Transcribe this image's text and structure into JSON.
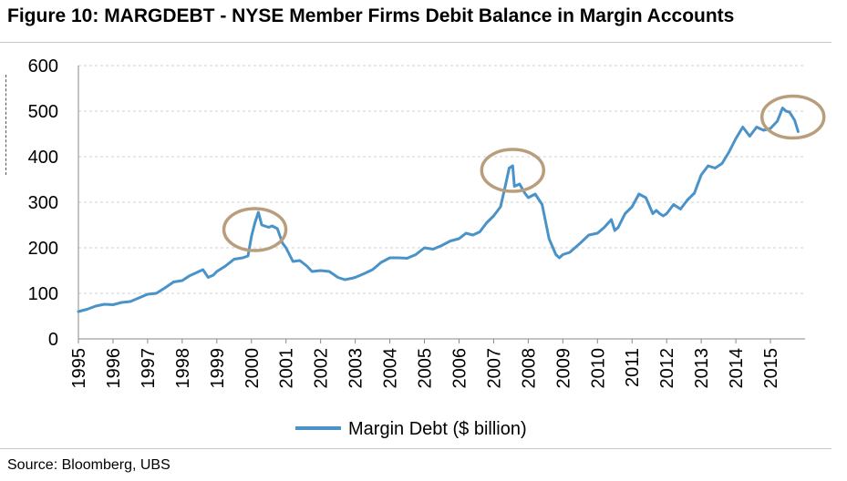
{
  "header": {
    "title": "Figure 10: MARGDEBT - NYSE Member Firms Debit Balance in Margin Accounts"
  },
  "footer": {
    "source": "Source:  Bloomberg, UBS"
  },
  "colors": {
    "line": "#4a93c9",
    "highlight": "#b99e7e",
    "grid": "#d0d0d0"
  },
  "chart_data": {
    "type": "line",
    "title": "Figure 10: MARGDEBT - NYSE Member Firms Debit Balance in Margin Accounts",
    "xlabel": "",
    "ylabel": "",
    "ylim": [
      0,
      600
    ],
    "yticks": [
      "0",
      "100",
      "200",
      "300",
      "400",
      "500",
      "600"
    ],
    "xlim": [
      1995,
      2016
    ],
    "xticks": [
      "1995",
      "1996",
      "1997",
      "1998",
      "1999",
      "2000",
      "2001",
      "2002",
      "2003",
      "2004",
      "2005",
      "2006",
      "2007",
      "2008",
      "2009",
      "2010",
      "2011",
      "2012",
      "2013",
      "2014",
      "2015"
    ],
    "grid": "horizontal dashed",
    "legend_position": "bottom",
    "highlights": [
      {
        "x": 2000.1,
        "y": 240
      },
      {
        "x": 2007.55,
        "y": 370
      },
      {
        "x": 2015.65,
        "y": 487
      }
    ],
    "series": [
      {
        "name": "Margin Debt ($ billion)",
        "x": [
          1995.0,
          1995.25,
          1995.5,
          1995.75,
          1996.0,
          1996.25,
          1996.5,
          1996.75,
          1997.0,
          1997.25,
          1997.5,
          1997.75,
          1998.0,
          1998.2,
          1998.4,
          1998.6,
          1998.75,
          1998.9,
          1999.0,
          1999.25,
          1999.5,
          1999.75,
          1999.9,
          2000.0,
          2000.1,
          2000.2,
          2000.3,
          2000.5,
          2000.6,
          2000.75,
          2000.9,
          2001.0,
          2001.2,
          2001.4,
          2001.6,
          2001.75,
          2002.0,
          2002.25,
          2002.5,
          2002.7,
          2002.9,
          2003.0,
          2003.25,
          2003.5,
          2003.75,
          2004.0,
          2004.25,
          2004.5,
          2004.75,
          2005.0,
          2005.25,
          2005.5,
          2005.75,
          2006.0,
          2006.2,
          2006.4,
          2006.6,
          2006.8,
          2007.0,
          2007.2,
          2007.35,
          2007.45,
          2007.55,
          2007.6,
          2007.75,
          2007.9,
          2008.0,
          2008.2,
          2008.4,
          2008.6,
          2008.8,
          2008.9,
          2009.0,
          2009.2,
          2009.5,
          2009.75,
          2010.0,
          2010.2,
          2010.4,
          2010.5,
          2010.6,
          2010.8,
          2011.0,
          2011.2,
          2011.4,
          2011.6,
          2011.7,
          2011.8,
          2011.9,
          2012.0,
          2012.2,
          2012.4,
          2012.6,
          2012.8,
          2013.0,
          2013.2,
          2013.4,
          2013.6,
          2013.8,
          2014.0,
          2014.2,
          2014.4,
          2014.6,
          2014.8,
          2015.0,
          2015.2,
          2015.35,
          2015.45,
          2015.55,
          2015.7,
          2015.8
        ],
        "values": [
          60,
          65,
          72,
          76,
          75,
          80,
          82,
          90,
          98,
          100,
          112,
          125,
          128,
          138,
          145,
          152,
          135,
          140,
          148,
          160,
          175,
          178,
          182,
          225,
          255,
          278,
          250,
          245,
          248,
          242,
          210,
          200,
          170,
          172,
          160,
          148,
          150,
          148,
          135,
          130,
          133,
          135,
          143,
          152,
          168,
          178,
          178,
          177,
          185,
          200,
          197,
          205,
          215,
          220,
          232,
          228,
          235,
          255,
          270,
          290,
          340,
          375,
          380,
          335,
          340,
          320,
          310,
          318,
          295,
          220,
          185,
          178,
          185,
          190,
          210,
          228,
          232,
          245,
          262,
          238,
          245,
          275,
          290,
          318,
          310,
          275,
          282,
          275,
          270,
          275,
          295,
          285,
          305,
          320,
          360,
          380,
          375,
          385,
          410,
          440,
          465,
          445,
          465,
          458,
          462,
          478,
          507,
          500,
          498,
          480,
          455
        ]
      }
    ]
  }
}
